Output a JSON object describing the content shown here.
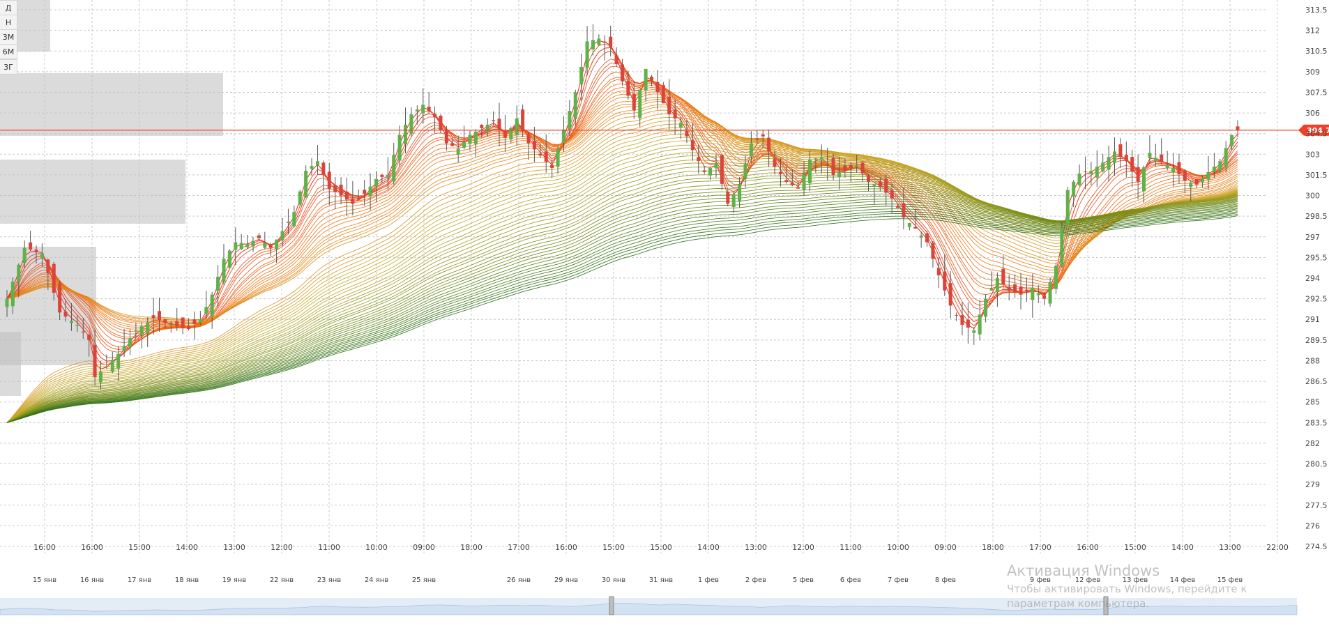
{
  "timeframe_buttons": [
    "Д",
    "Н",
    "3М",
    "6М",
    "3Г"
  ],
  "current_price": "304.75",
  "colors": {
    "up_candle": "#5fb24a",
    "down_candle": "#d9453a",
    "price_line": "#f0402a",
    "grid": "#c9c9c9",
    "navigator_fill": "#e4edf6"
  },
  "watermark": {
    "title": "Активация Windows",
    "text": "Чтобы активировать Windows, перейдите к параметрам компьютера."
  },
  "chart_data": {
    "type": "candlestick",
    "y_axis": {
      "range": [
        274.5,
        313.5
      ],
      "ticks": [
        "274.5",
        "276",
        "277.5",
        "279",
        "280.5",
        "282",
        "283.5",
        "285",
        "286.5",
        "288",
        "289.5",
        "291",
        "292.5",
        "294",
        "295.5",
        "297",
        "298.5",
        "300",
        "301.5",
        "303",
        "304.5",
        "306",
        "307.5",
        "309",
        "310.5",
        "312",
        "313.5"
      ]
    },
    "x_axis": {
      "labels": [
        {
          "time": "16:00",
          "date": "15 янв"
        },
        {
          "time": "16:00",
          "date": "16 янв"
        },
        {
          "time": "15:00",
          "date": "17 янв"
        },
        {
          "time": "14:00",
          "date": "18 янв"
        },
        {
          "time": "13:00",
          "date": "19 янв"
        },
        {
          "time": "12:00",
          "date": "22 янв"
        },
        {
          "time": "11:00",
          "date": "23 янв"
        },
        {
          "time": "10:00",
          "date": "24 янв"
        },
        {
          "time": "09:00",
          "date": "25 янв"
        },
        {
          "time": "18:00",
          "date": ""
        },
        {
          "time": "17:00",
          "date": "26 янв"
        },
        {
          "time": "16:00",
          "date": "29 янв"
        },
        {
          "time": "15:00",
          "date": "30 янв"
        },
        {
          "time": "15:00",
          "date": "31 янв"
        },
        {
          "time": "14:00",
          "date": "1 фев"
        },
        {
          "time": "13:00",
          "date": "2 фев"
        },
        {
          "time": "12:00",
          "date": "5 фев"
        },
        {
          "time": "11:00",
          "date": "6 фев"
        },
        {
          "time": "10:00",
          "date": "7 фев"
        },
        {
          "time": "09:00",
          "date": "8 фев"
        },
        {
          "time": "18:00",
          "date": ""
        },
        {
          "time": "17:00",
          "date": "9 фев"
        },
        {
          "time": "16:00",
          "date": "12 фев"
        },
        {
          "time": "15:00",
          "date": "13 фев"
        },
        {
          "time": "14:00",
          "date": "14 фев"
        },
        {
          "time": "13:00",
          "date": "15 фев"
        },
        {
          "time": "22:00",
          "date": ""
        }
      ]
    },
    "close_path": [
      [
        0,
        292.5
      ],
      [
        3,
        296.2
      ],
      [
        6,
        295.8
      ],
      [
        9,
        291.5
      ],
      [
        12,
        290.6
      ],
      [
        14,
        289.5
      ],
      [
        15,
        286.8
      ],
      [
        17,
        287.6
      ],
      [
        19,
        288.5
      ],
      [
        22,
        290.2
      ],
      [
        25,
        291.1
      ],
      [
        28,
        290.6
      ],
      [
        31,
        290.3
      ],
      [
        33,
        291.0
      ],
      [
        35,
        292.8
      ],
      [
        37,
        295.4
      ],
      [
        39,
        296.6
      ],
      [
        41,
        296.5
      ],
      [
        43,
        296.9
      ],
      [
        45,
        296.2
      ],
      [
        47,
        297.4
      ],
      [
        49,
        298.8
      ],
      [
        51,
        301.8
      ],
      [
        53,
        302.5
      ],
      [
        55,
        300.5
      ],
      [
        57,
        300.0
      ],
      [
        59,
        299.4
      ],
      [
        61,
        300.1
      ],
      [
        63,
        301.2
      ],
      [
        65,
        301.5
      ],
      [
        67,
        304.4
      ],
      [
        69,
        305.9
      ],
      [
        71,
        306.6
      ],
      [
        73,
        305.7
      ],
      [
        75,
        303.8
      ],
      [
        77,
        303.4
      ],
      [
        79,
        304.4
      ],
      [
        81,
        304.9
      ],
      [
        83,
        305.4
      ],
      [
        85,
        304.2
      ],
      [
        87,
        305.6
      ],
      [
        89,
        303.8
      ],
      [
        91,
        302.9
      ],
      [
        93,
        302.0
      ],
      [
        95,
        304.8
      ],
      [
        97,
        307.5
      ],
      [
        99,
        311.2
      ],
      [
        101,
        311.4
      ],
      [
        103,
        310.8
      ],
      [
        105,
        308.3
      ],
      [
        107,
        306.2
      ],
      [
        109,
        309.2
      ],
      [
        111,
        307.5
      ],
      [
        113,
        305.9
      ],
      [
        115,
        305.3
      ],
      [
        117,
        303.3
      ],
      [
        119,
        301.7
      ],
      [
        121,
        302.3
      ],
      [
        123,
        299.4
      ],
      [
        125,
        300.8
      ],
      [
        127,
        303.8
      ],
      [
        129,
        304.3
      ],
      [
        131,
        302.1
      ],
      [
        133,
        301.0
      ],
      [
        135,
        300.5
      ],
      [
        137,
        302.6
      ],
      [
        139,
        302.8
      ],
      [
        141,
        301.5
      ],
      [
        143,
        301.8
      ],
      [
        145,
        302.2
      ],
      [
        147,
        301.0
      ],
      [
        149,
        300.6
      ],
      [
        151,
        299.8
      ],
      [
        153,
        298.4
      ],
      [
        155,
        297.6
      ],
      [
        157,
        296.6
      ],
      [
        159,
        294.2
      ],
      [
        161,
        292.0
      ],
      [
        163,
        290.6
      ],
      [
        165,
        290.2
      ],
      [
        167,
        292.5
      ],
      [
        169,
        294.0
      ],
      [
        171,
        293.1
      ],
      [
        173,
        292.8
      ],
      [
        175,
        293.3
      ],
      [
        177,
        292.5
      ],
      [
        179,
        294.9
      ],
      [
        181,
        300.4
      ],
      [
        183,
        301.6
      ],
      [
        185,
        301.8
      ],
      [
        187,
        302.4
      ],
      [
        189,
        303.2
      ],
      [
        191,
        302.5
      ],
      [
        193,
        301.0
      ],
      [
        195,
        303.1
      ],
      [
        197,
        302.4
      ],
      [
        199,
        302.0
      ],
      [
        201,
        301.1
      ],
      [
        203,
        300.8
      ],
      [
        205,
        301.7
      ],
      [
        207,
        302.5
      ],
      [
        209,
        304.4
      ],
      [
        210,
        304.75
      ]
    ]
  }
}
